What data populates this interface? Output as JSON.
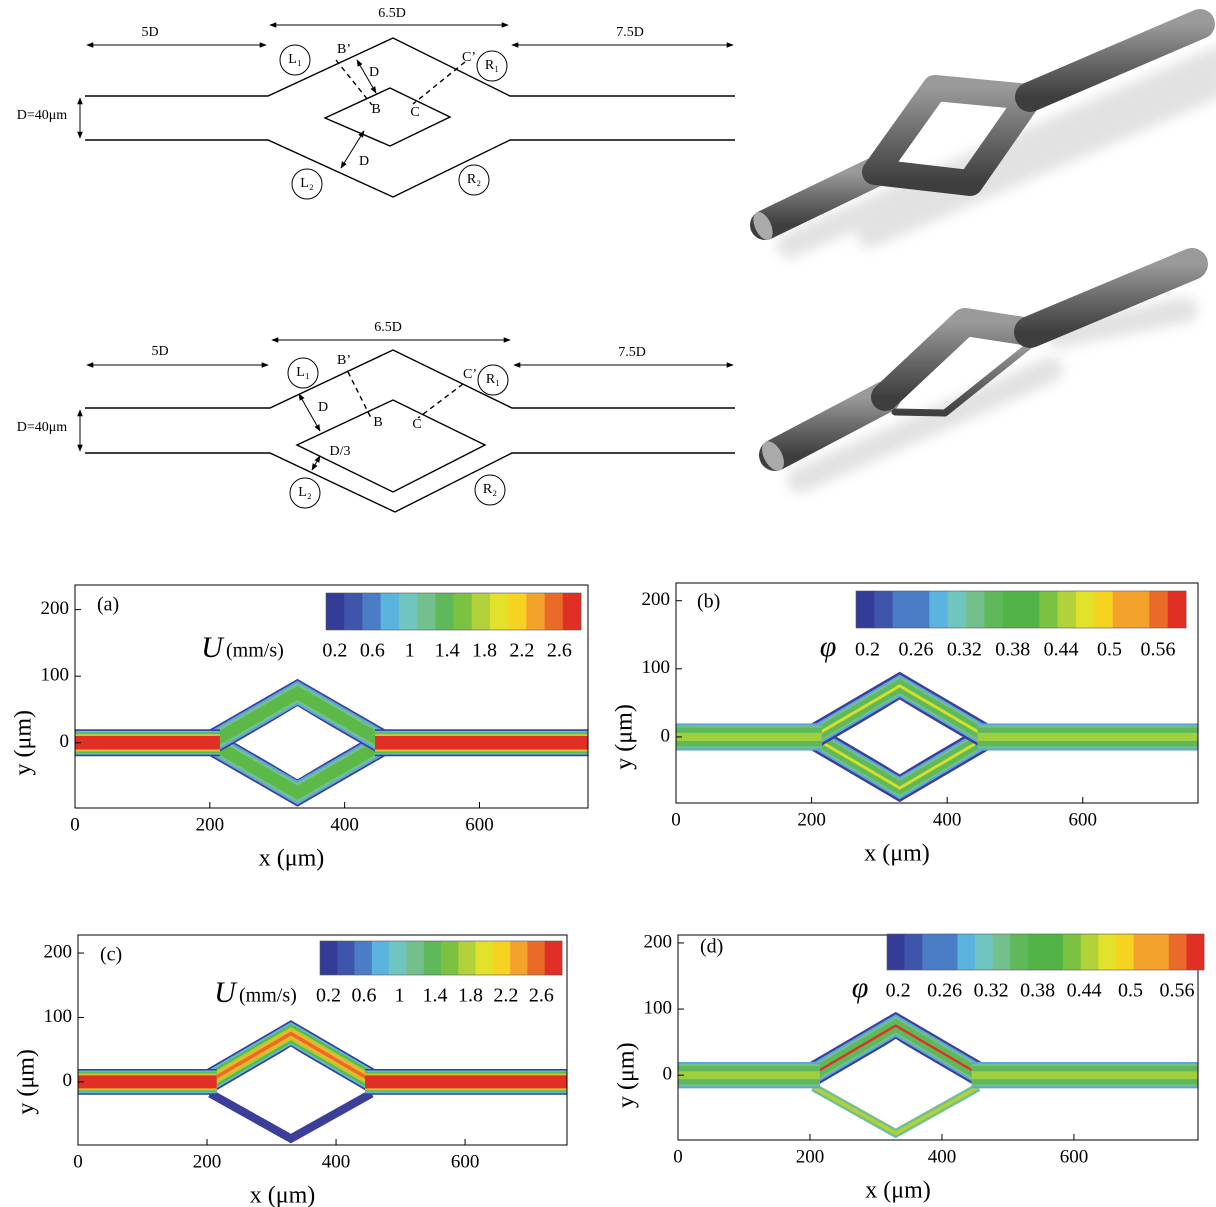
{
  "schematics": [
    {
      "dimensions": {
        "inlet": "5D",
        "middle": "6.5D",
        "outlet": "7.5D",
        "diameter": "D=40μm"
      },
      "points": [
        "B’",
        "B",
        "C’",
        "C"
      ],
      "branches": [
        "L₁",
        "R₁",
        "L₂",
        "R₂"
      ],
      "gaps": [
        "D",
        "D"
      ]
    },
    {
      "dimensions": {
        "inlet": "5D",
        "middle": "6.5D",
        "outlet": "7.5D",
        "diameter": "D=40μm"
      },
      "points": [
        "B’",
        "B",
        "C’",
        "C"
      ],
      "branches": [
        "L₁",
        "R₁",
        "L₂",
        "R₂"
      ],
      "gaps": [
        "D",
        "D/3"
      ]
    }
  ],
  "plots": [
    {
      "panel": "(a)",
      "xlabel": "x (μm)",
      "ylabel": "y (μm)",
      "xlim": [
        0,
        761
      ],
      "ylim": [
        -98,
        237
      ],
      "xticks": [
        0,
        200,
        400,
        600
      ],
      "yticks": [
        0,
        100,
        200
      ],
      "colorbar": {
        "symbol": "U",
        "unit": "(mm/s)",
        "labels": [
          "0.2",
          "0.6",
          "1",
          "1.4",
          "1.8",
          "2.2",
          "2.6"
        ]
      }
    },
    {
      "panel": "(b)",
      "xlabel": "x (μm)",
      "ylabel": "y (μm)",
      "xlim": [
        0,
        770
      ],
      "ylim": [
        -97,
        226
      ],
      "xticks": [
        0,
        200,
        400,
        600
      ],
      "yticks": [
        0,
        100,
        200
      ],
      "colorbar": {
        "symbol": "φ",
        "labels": [
          "0.2",
          "0.26",
          "0.32",
          "0.38",
          "0.44",
          "0.5",
          "0.56"
        ]
      }
    },
    {
      "panel": "(c)",
      "xlabel": "x (μm)",
      "ylabel": "y (μm)",
      "xlim": [
        0,
        758
      ],
      "ylim": [
        -98,
        228
      ],
      "xticks": [
        0,
        200,
        400,
        600
      ],
      "yticks": [
        0,
        100,
        200
      ],
      "colorbar": {
        "symbol": "U",
        "unit": "(mm/s)",
        "labels": [
          "0.2",
          "0.6",
          "1",
          "1.4",
          "1.8",
          "2.2",
          "2.6"
        ]
      }
    },
    {
      "panel": "(d)",
      "xlabel": "x (μm)",
      "ylabel": "y (μm)",
      "xlim": [
        0,
        788
      ],
      "ylim": [
        -98,
        212
      ],
      "xticks": [
        0,
        200,
        400,
        600
      ],
      "yticks": [
        0,
        100,
        200
      ],
      "colorbar": {
        "symbol": "φ",
        "labels": [
          "0.2",
          "0.26",
          "0.32",
          "0.38",
          "0.44",
          "0.5",
          "0.56"
        ]
      }
    }
  ]
}
